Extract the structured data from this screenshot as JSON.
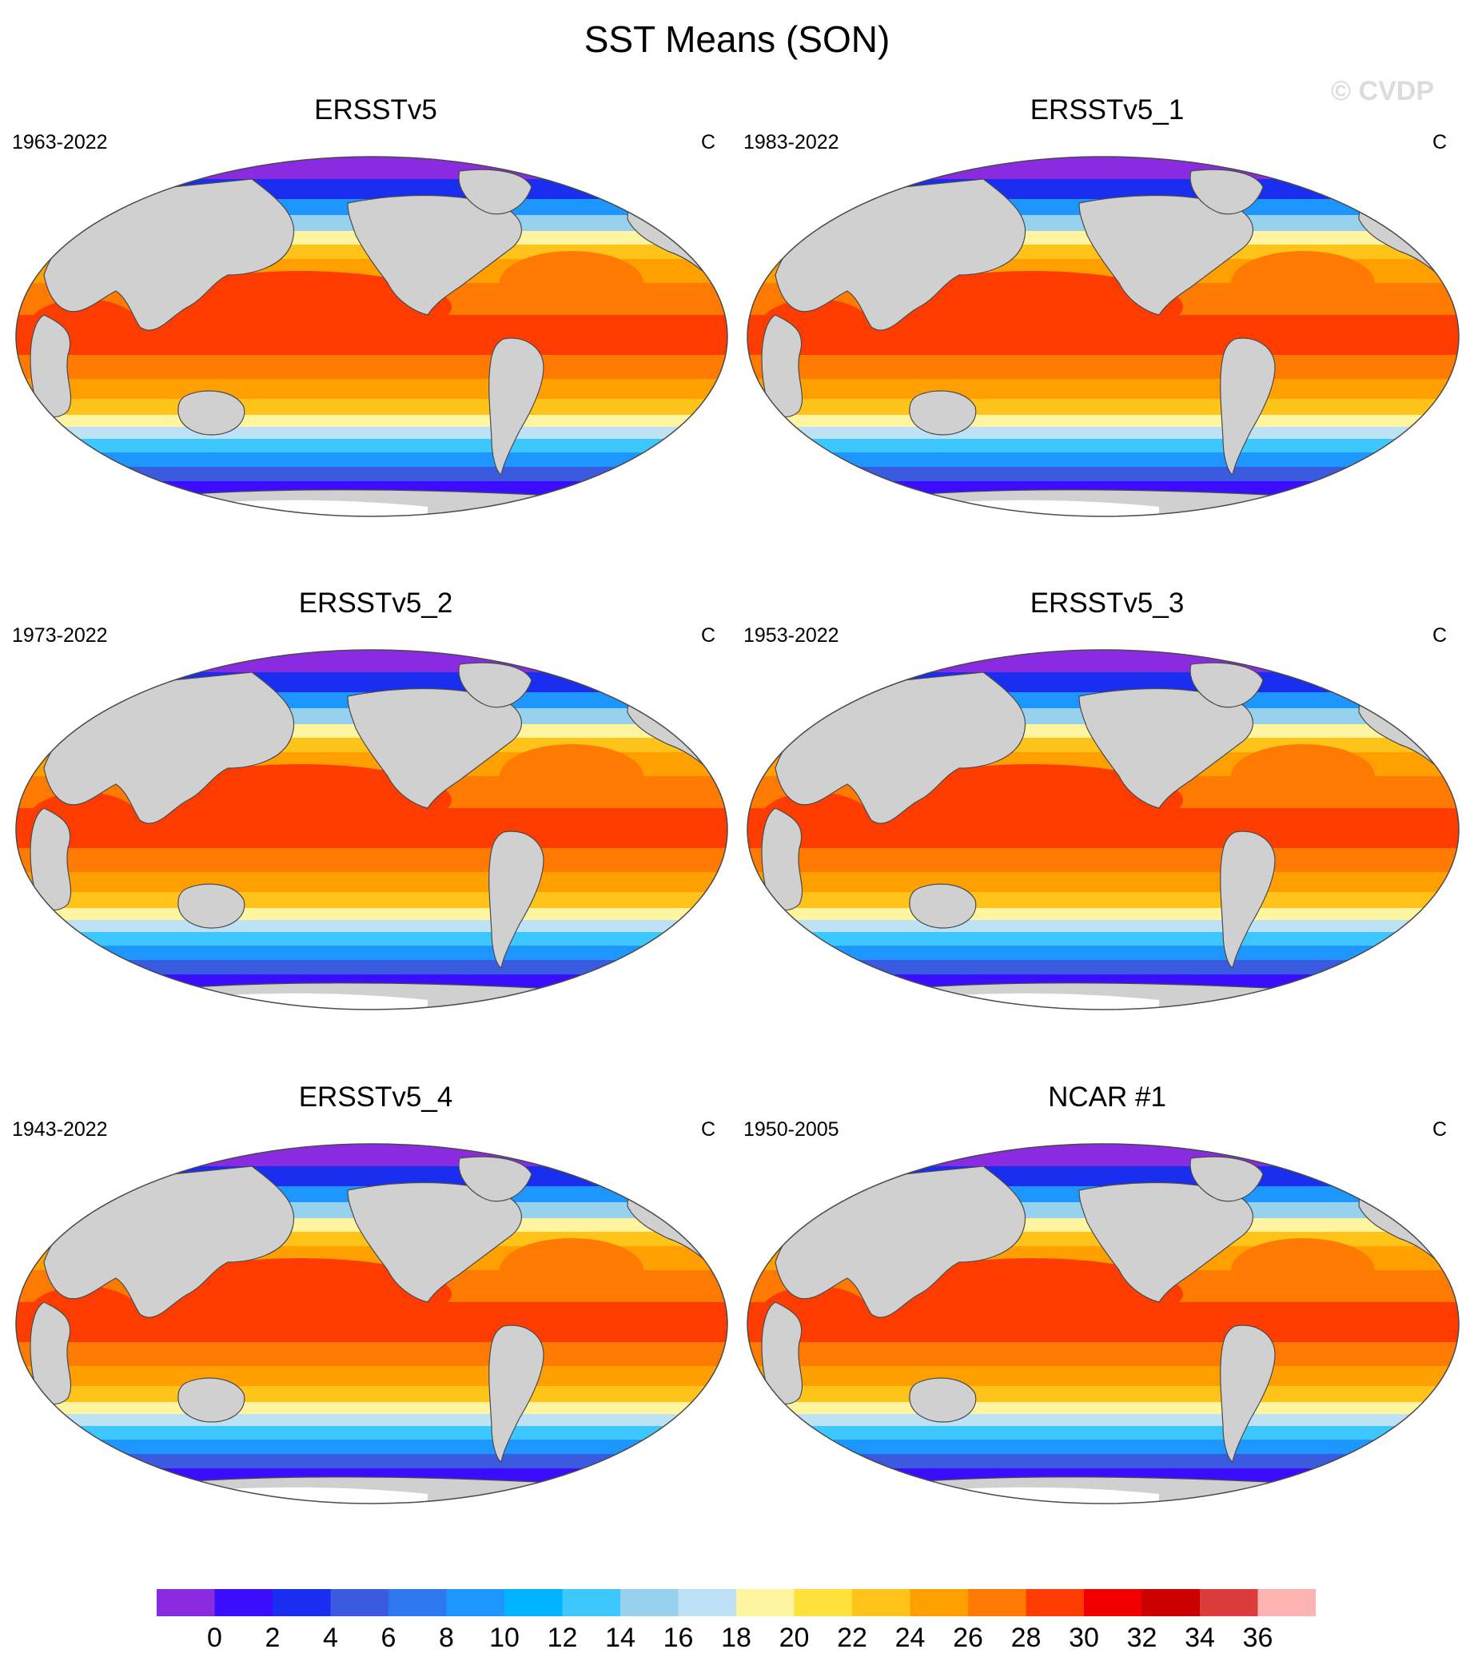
{
  "title": "SST Means (SON)",
  "watermark": "© CVDP",
  "panels": [
    {
      "name": "ERSSTv5",
      "period": "1963-2022",
      "units": "C"
    },
    {
      "name": "ERSSTv5_1",
      "period": "1983-2022",
      "units": "C"
    },
    {
      "name": "ERSSTv5_2",
      "period": "1973-2022",
      "units": "C"
    },
    {
      "name": "ERSSTv5_3",
      "period": "1953-2022",
      "units": "C"
    },
    {
      "name": "ERSSTv5_4",
      "period": "1943-2022",
      "units": "C"
    },
    {
      "name": "NCAR #1",
      "period": "1950-2005",
      "units": "C"
    }
  ],
  "colorbar": {
    "labels": [
      "0",
      "2",
      "4",
      "6",
      "8",
      "10",
      "12",
      "14",
      "16",
      "18",
      "20",
      "22",
      "24",
      "26",
      "28",
      "30",
      "32",
      "34",
      "36"
    ],
    "colors": [
      "#8a2be2",
      "#3a0dff",
      "#1a2ef0",
      "#3a5ae0",
      "#2d78f0",
      "#1e96ff",
      "#00b4ff",
      "#3cc8ff",
      "#96d2ee",
      "#bde1f5",
      "#fff5a0",
      "#ffe13a",
      "#ffc31a",
      "#ffa000",
      "#ff7a00",
      "#ff3c00",
      "#f00000",
      "#cd0000",
      "#dc3c3c",
      "#ffb4b4"
    ]
  },
  "colors": {
    "land": "#d0d0d0",
    "ice": "#ffffff",
    "outline": "#4a4a4a"
  }
}
